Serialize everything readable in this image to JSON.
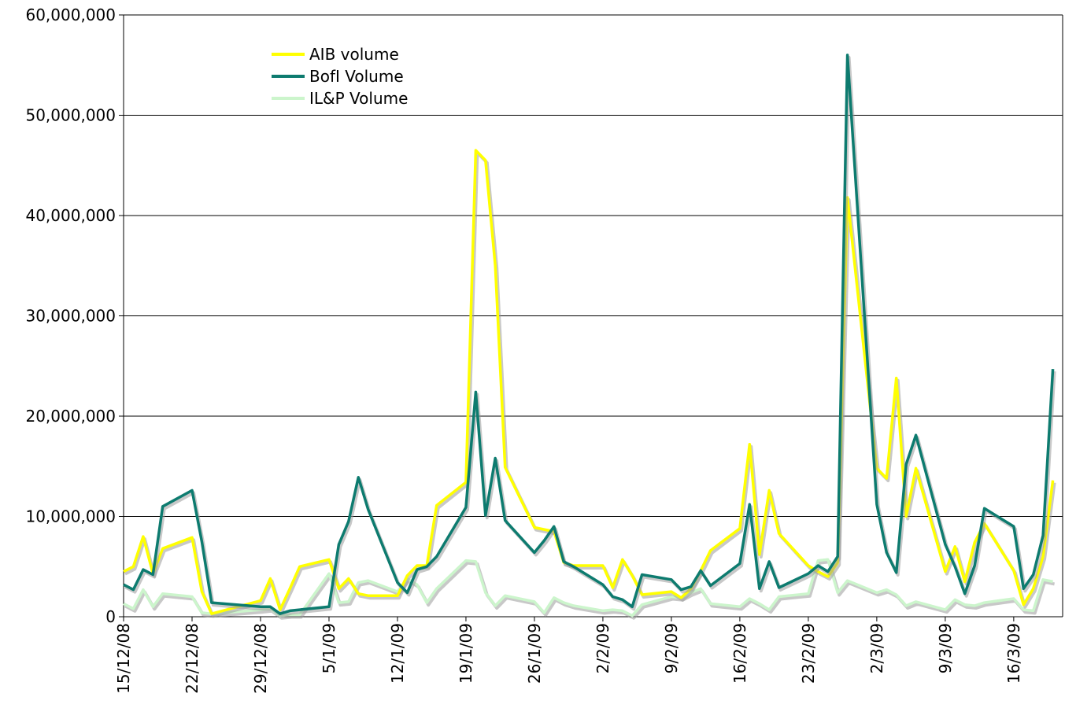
{
  "chart_data": {
    "type": "line",
    "title": "",
    "xlabel": "",
    "ylabel": "",
    "ylim": [
      0,
      60000000
    ],
    "yticks": [
      0,
      10000000,
      20000000,
      30000000,
      40000000,
      50000000,
      60000000
    ],
    "ytick_labels": [
      "0",
      "10,000,000",
      "20,000,000",
      "30,000,000",
      "40,000,000",
      "50,000,000",
      "60,000,000"
    ],
    "xlim": [
      0,
      96
    ],
    "xtick_labels": [
      "15/12/08",
      "22/12/08",
      "29/12/08",
      "5/1/09",
      "12/1/09",
      "19/1/09",
      "26/1/09",
      "2/2/09",
      "9/2/09",
      "16/2/09",
      "23/2/09",
      "2/3/09",
      "9/3/09",
      "16/3/09"
    ],
    "xtick_positions": [
      0,
      7,
      14,
      21,
      28,
      35,
      42,
      49,
      56,
      63,
      70,
      77,
      84,
      91
    ],
    "grid": true,
    "legend_position": "top-left",
    "colors": {
      "AIB volume": "#ffff00",
      "BofI Volume": "#0d7b6f",
      "IL&P Volume": "#ccf5cc"
    },
    "series": [
      {
        "name": "AIB volume",
        "x": [
          0,
          1,
          2,
          3,
          4,
          7,
          8,
          9,
          14,
          15,
          16,
          17,
          18,
          21,
          22,
          23,
          24,
          25,
          28,
          29,
          30,
          31,
          32,
          35,
          36,
          37,
          38,
          39,
          42,
          43,
          44,
          45,
          46,
          49,
          50,
          51,
          52,
          53,
          56,
          57,
          58,
          59,
          60,
          63,
          64,
          65,
          66,
          67,
          70,
          71,
          72,
          73,
          74,
          77,
          78,
          79,
          80,
          81,
          84,
          85,
          86,
          87,
          88,
          91,
          92,
          93,
          94,
          95
        ],
        "values": [
          4500000,
          5000000,
          8000000,
          4300000,
          6800000,
          7900000,
          2500000,
          300000,
          1600000,
          3800000,
          700000,
          2800000,
          5000000,
          5700000,
          2800000,
          3800000,
          2300000,
          2100000,
          2100000,
          4100000,
          5100000,
          5100000,
          11100000,
          13400000,
          46500000,
          45500000,
          35000000,
          14900000,
          8900000,
          8700000,
          8500000,
          5400000,
          5100000,
          5100000,
          2900000,
          5700000,
          4100000,
          2200000,
          2500000,
          1900000,
          2800000,
          4600000,
          6600000,
          8800000,
          17200000,
          6200000,
          12600000,
          8300000,
          5100000,
          4500000,
          4000000,
          5400000,
          41800000,
          14800000,
          13800000,
          23800000,
          10000000,
          14800000,
          4500000,
          7000000,
          3500000,
          7400000,
          9300000,
          4600000,
          1200000,
          2800000,
          6000000,
          13600000
        ]
      },
      {
        "name": "BofI Volume",
        "x": [
          0,
          1,
          2,
          3,
          4,
          7,
          8,
          9,
          14,
          15,
          16,
          17,
          18,
          21,
          22,
          23,
          24,
          25,
          28,
          29,
          30,
          31,
          32,
          35,
          36,
          37,
          38,
          39,
          42,
          43,
          44,
          45,
          46,
          49,
          50,
          51,
          52,
          53,
          56,
          57,
          58,
          59,
          60,
          63,
          64,
          65,
          66,
          67,
          70,
          71,
          72,
          73,
          74,
          77,
          78,
          79,
          80,
          81,
          84,
          85,
          86,
          87,
          88,
          91,
          92,
          93,
          94,
          95
        ],
        "values": [
          3200000,
          2700000,
          4700000,
          4200000,
          11000000,
          12600000,
          7500000,
          1400000,
          1000000,
          1000000,
          300000,
          600000,
          700000,
          1000000,
          7200000,
          9500000,
          13900000,
          10700000,
          3400000,
          2400000,
          4700000,
          5000000,
          6000000,
          10900000,
          22400000,
          10100000,
          15800000,
          9600000,
          6400000,
          7600000,
          9000000,
          5500000,
          5000000,
          3200000,
          2000000,
          1700000,
          1000000,
          4200000,
          3700000,
          2700000,
          3000000,
          4600000,
          3100000,
          5300000,
          11200000,
          2800000,
          5500000,
          2900000,
          4300000,
          5100000,
          4500000,
          6000000,
          56000000,
          11200000,
          6400000,
          4400000,
          15200000,
          18100000,
          7200000,
          5000000,
          2300000,
          5100000,
          10800000,
          9000000,
          2800000,
          4200000,
          8100000,
          24700000
        ]
      },
      {
        "name": "IL&P Volume",
        "x": [
          0,
          1,
          2,
          3,
          4,
          7,
          8,
          9,
          14,
          15,
          16,
          17,
          18,
          21,
          22,
          23,
          24,
          25,
          28,
          29,
          30,
          31,
          32,
          35,
          36,
          37,
          38,
          39,
          42,
          43,
          44,
          45,
          46,
          49,
          50,
          51,
          52,
          53,
          56,
          57,
          58,
          59,
          60,
          63,
          64,
          65,
          66,
          67,
          70,
          71,
          72,
          73,
          74,
          77,
          78,
          79,
          80,
          81,
          84,
          85,
          86,
          87,
          88,
          91,
          92,
          93,
          94,
          95
        ],
        "values": [
          1300000,
          800000,
          2700000,
          1000000,
          2300000,
          2000000,
          400000,
          300000,
          700000,
          800000,
          100000,
          200000,
          200000,
          4300000,
          1400000,
          1500000,
          3400000,
          3600000,
          2500000,
          3800000,
          3200000,
          1400000,
          2800000,
          5600000,
          5500000,
          2400000,
          1100000,
          2100000,
          1500000,
          400000,
          1900000,
          1400000,
          1100000,
          600000,
          700000,
          600000,
          100000,
          1200000,
          2000000,
          1900000,
          2400000,
          2800000,
          1300000,
          1000000,
          1800000,
          1300000,
          700000,
          2000000,
          2300000,
          5600000,
          5700000,
          2400000,
          3600000,
          2400000,
          2700000,
          2200000,
          1100000,
          1500000,
          700000,
          1700000,
          1200000,
          1100000,
          1400000,
          1800000,
          700000,
          600000,
          3700000,
          3500000
        ]
      }
    ]
  }
}
